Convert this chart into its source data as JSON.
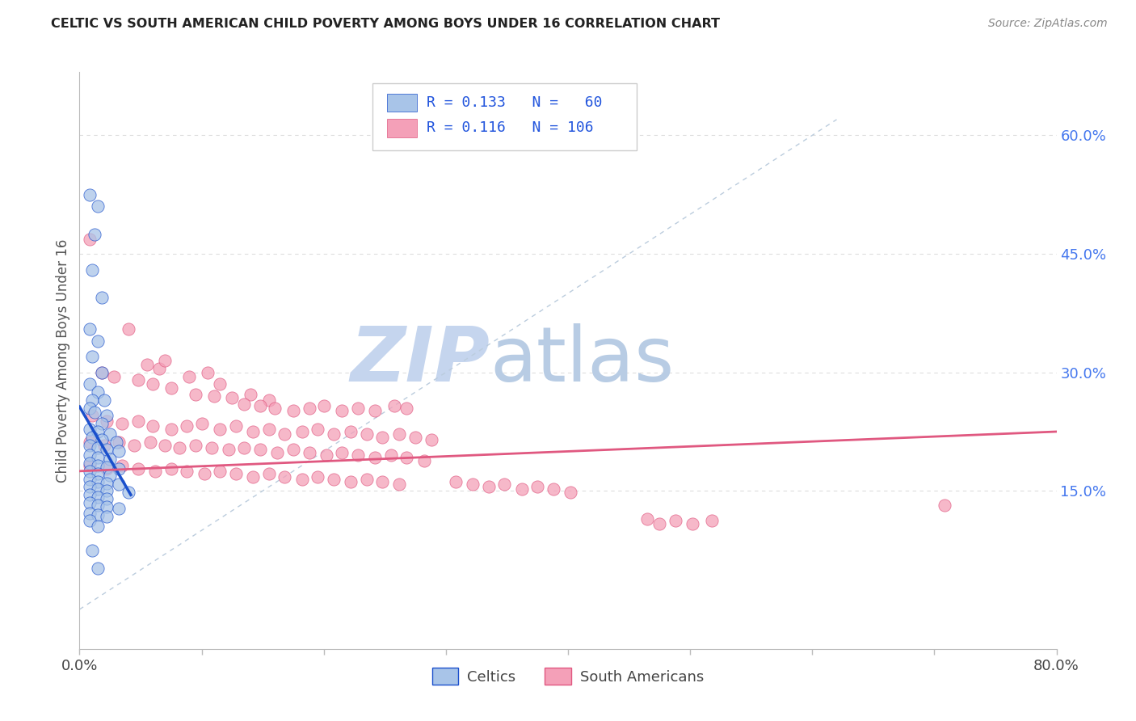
{
  "title": "CELTIC VS SOUTH AMERICAN CHILD POVERTY AMONG BOYS UNDER 16 CORRELATION CHART",
  "source": "Source: ZipAtlas.com",
  "ylabel": "Child Poverty Among Boys Under 16",
  "xlim": [
    0.0,
    0.8
  ],
  "ylim": [
    -0.05,
    0.68
  ],
  "xticks": [
    0.0,
    0.1,
    0.2,
    0.3,
    0.4,
    0.5,
    0.6,
    0.7,
    0.8
  ],
  "yticks_right": [
    0.6,
    0.45,
    0.3,
    0.15
  ],
  "ytick_right_labels": [
    "60.0%",
    "45.0%",
    "30.0%",
    "15.0%"
  ],
  "celtic_color": "#a8c4e8",
  "sa_color": "#f4a0b8",
  "celtic_line_color": "#1a4fcc",
  "sa_line_color": "#e05880",
  "diagonal_color": "#bbccdd",
  "watermark_zip": "ZIP",
  "watermark_atlas": "atlas",
  "watermark_color_zip": "#c5d5ee",
  "watermark_color_atlas": "#b8cce4",
  "background_color": "#ffffff",
  "title_color": "#222222",
  "axis_color": "#bbbbbb",
  "grid_color": "#dddddd",
  "right_tick_color": "#4477ee",
  "legend_text_color": "#2255dd",
  "celtics_scatter": [
    [
      0.008,
      0.525
    ],
    [
      0.015,
      0.51
    ],
    [
      0.012,
      0.475
    ],
    [
      0.01,
      0.43
    ],
    [
      0.018,
      0.395
    ],
    [
      0.008,
      0.355
    ],
    [
      0.015,
      0.34
    ],
    [
      0.01,
      0.32
    ],
    [
      0.018,
      0.3
    ],
    [
      0.008,
      0.285
    ],
    [
      0.015,
      0.275
    ],
    [
      0.01,
      0.265
    ],
    [
      0.02,
      0.265
    ],
    [
      0.008,
      0.255
    ],
    [
      0.012,
      0.25
    ],
    [
      0.022,
      0.245
    ],
    [
      0.018,
      0.235
    ],
    [
      0.008,
      0.228
    ],
    [
      0.015,
      0.225
    ],
    [
      0.025,
      0.222
    ],
    [
      0.01,
      0.218
    ],
    [
      0.018,
      0.215
    ],
    [
      0.03,
      0.212
    ],
    [
      0.008,
      0.208
    ],
    [
      0.015,
      0.205
    ],
    [
      0.022,
      0.202
    ],
    [
      0.032,
      0.2
    ],
    [
      0.008,
      0.195
    ],
    [
      0.015,
      0.192
    ],
    [
      0.025,
      0.19
    ],
    [
      0.008,
      0.185
    ],
    [
      0.015,
      0.182
    ],
    [
      0.022,
      0.18
    ],
    [
      0.032,
      0.178
    ],
    [
      0.008,
      0.175
    ],
    [
      0.015,
      0.172
    ],
    [
      0.025,
      0.17
    ],
    [
      0.008,
      0.165
    ],
    [
      0.015,
      0.162
    ],
    [
      0.022,
      0.16
    ],
    [
      0.032,
      0.158
    ],
    [
      0.008,
      0.155
    ],
    [
      0.015,
      0.152
    ],
    [
      0.022,
      0.15
    ],
    [
      0.04,
      0.148
    ],
    [
      0.008,
      0.145
    ],
    [
      0.015,
      0.142
    ],
    [
      0.022,
      0.14
    ],
    [
      0.008,
      0.135
    ],
    [
      0.015,
      0.132
    ],
    [
      0.022,
      0.13
    ],
    [
      0.032,
      0.128
    ],
    [
      0.008,
      0.122
    ],
    [
      0.015,
      0.12
    ],
    [
      0.022,
      0.118
    ],
    [
      0.008,
      0.112
    ],
    [
      0.015,
      0.105
    ],
    [
      0.01,
      0.075
    ],
    [
      0.015,
      0.052
    ]
  ],
  "sa_scatter": [
    [
      0.008,
      0.468
    ],
    [
      0.04,
      0.355
    ],
    [
      0.055,
      0.31
    ],
    [
      0.065,
      0.305
    ],
    [
      0.07,
      0.315
    ],
    [
      0.018,
      0.3
    ],
    [
      0.028,
      0.295
    ],
    [
      0.048,
      0.29
    ],
    [
      0.06,
      0.285
    ],
    [
      0.075,
      0.28
    ],
    [
      0.09,
      0.295
    ],
    [
      0.105,
      0.3
    ],
    [
      0.115,
      0.285
    ],
    [
      0.095,
      0.272
    ],
    [
      0.11,
      0.27
    ],
    [
      0.125,
      0.268
    ],
    [
      0.14,
      0.272
    ],
    [
      0.155,
      0.265
    ],
    [
      0.135,
      0.26
    ],
    [
      0.148,
      0.258
    ],
    [
      0.16,
      0.255
    ],
    [
      0.175,
      0.252
    ],
    [
      0.188,
      0.255
    ],
    [
      0.2,
      0.258
    ],
    [
      0.215,
      0.252
    ],
    [
      0.228,
      0.255
    ],
    [
      0.242,
      0.252
    ],
    [
      0.258,
      0.258
    ],
    [
      0.268,
      0.255
    ],
    [
      0.01,
      0.245
    ],
    [
      0.022,
      0.238
    ],
    [
      0.035,
      0.235
    ],
    [
      0.048,
      0.238
    ],
    [
      0.06,
      0.232
    ],
    [
      0.075,
      0.228
    ],
    [
      0.088,
      0.232
    ],
    [
      0.1,
      0.235
    ],
    [
      0.115,
      0.228
    ],
    [
      0.128,
      0.232
    ],
    [
      0.142,
      0.225
    ],
    [
      0.155,
      0.228
    ],
    [
      0.168,
      0.222
    ],
    [
      0.182,
      0.225
    ],
    [
      0.195,
      0.228
    ],
    [
      0.208,
      0.222
    ],
    [
      0.222,
      0.225
    ],
    [
      0.235,
      0.222
    ],
    [
      0.248,
      0.218
    ],
    [
      0.262,
      0.222
    ],
    [
      0.275,
      0.218
    ],
    [
      0.288,
      0.215
    ],
    [
      0.008,
      0.212
    ],
    [
      0.02,
      0.208
    ],
    [
      0.032,
      0.212
    ],
    [
      0.045,
      0.208
    ],
    [
      0.058,
      0.212
    ],
    [
      0.07,
      0.208
    ],
    [
      0.082,
      0.205
    ],
    [
      0.095,
      0.208
    ],
    [
      0.108,
      0.205
    ],
    [
      0.122,
      0.202
    ],
    [
      0.135,
      0.205
    ],
    [
      0.148,
      0.202
    ],
    [
      0.162,
      0.198
    ],
    [
      0.175,
      0.202
    ],
    [
      0.188,
      0.198
    ],
    [
      0.202,
      0.195
    ],
    [
      0.215,
      0.198
    ],
    [
      0.228,
      0.195
    ],
    [
      0.242,
      0.192
    ],
    [
      0.255,
      0.195
    ],
    [
      0.268,
      0.192
    ],
    [
      0.282,
      0.188
    ],
    [
      0.008,
      0.182
    ],
    [
      0.022,
      0.178
    ],
    [
      0.035,
      0.182
    ],
    [
      0.048,
      0.178
    ],
    [
      0.062,
      0.175
    ],
    [
      0.075,
      0.178
    ],
    [
      0.088,
      0.175
    ],
    [
      0.102,
      0.172
    ],
    [
      0.115,
      0.175
    ],
    [
      0.128,
      0.172
    ],
    [
      0.142,
      0.168
    ],
    [
      0.155,
      0.172
    ],
    [
      0.168,
      0.168
    ],
    [
      0.182,
      0.165
    ],
    [
      0.195,
      0.168
    ],
    [
      0.208,
      0.165
    ],
    [
      0.222,
      0.162
    ],
    [
      0.235,
      0.165
    ],
    [
      0.248,
      0.162
    ],
    [
      0.262,
      0.158
    ],
    [
      0.308,
      0.162
    ],
    [
      0.322,
      0.158
    ],
    [
      0.335,
      0.155
    ],
    [
      0.348,
      0.158
    ],
    [
      0.362,
      0.152
    ],
    [
      0.375,
      0.155
    ],
    [
      0.388,
      0.152
    ],
    [
      0.402,
      0.148
    ],
    [
      0.465,
      0.115
    ],
    [
      0.475,
      0.108
    ],
    [
      0.488,
      0.112
    ],
    [
      0.502,
      0.108
    ],
    [
      0.518,
      0.112
    ],
    [
      0.708,
      0.132
    ]
  ]
}
